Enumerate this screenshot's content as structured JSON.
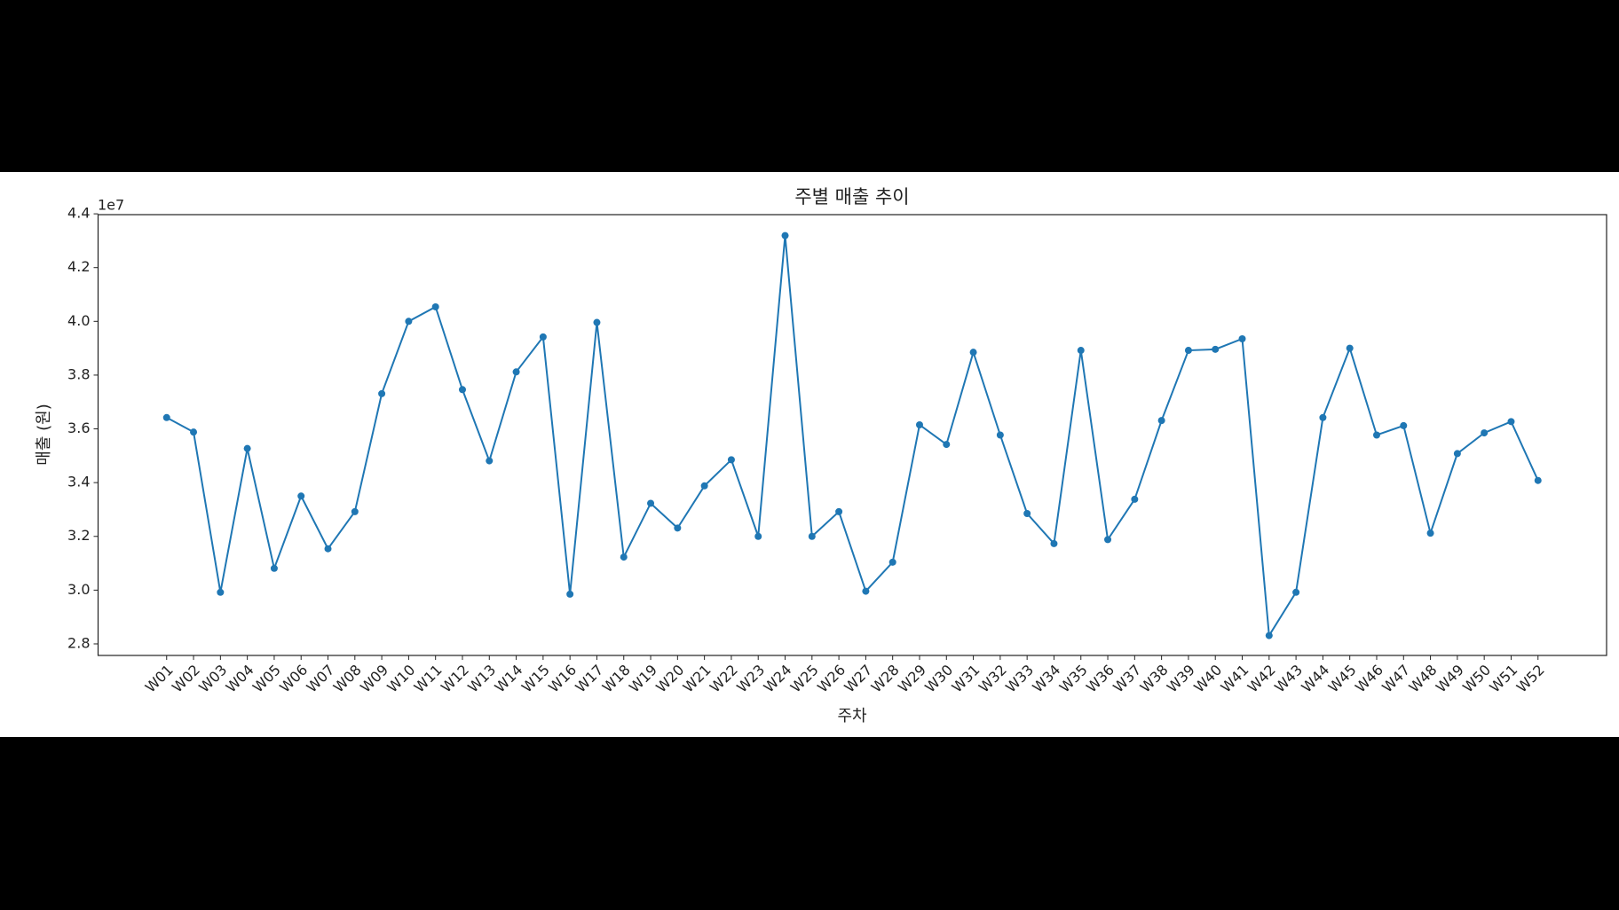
{
  "chart_data": {
    "type": "line",
    "title": "주별 매출 추이",
    "x_label": "주차",
    "y_label": "매출 (원)",
    "y_offset_label": "1e7",
    "categories": [
      "W01",
      "W02",
      "W03",
      "W04",
      "W05",
      "W06",
      "W07",
      "W08",
      "W09",
      "W10",
      "W11",
      "W12",
      "W13",
      "W14",
      "W15",
      "W16",
      "W17",
      "W18",
      "W19",
      "W20",
      "W21",
      "W22",
      "W23",
      "W24",
      "W25",
      "W26",
      "W27",
      "W28",
      "W29",
      "W30",
      "W31",
      "W32",
      "W33",
      "W34",
      "W35",
      "W36",
      "W37",
      "W38",
      "W39",
      "W40",
      "W41",
      "W42",
      "W43",
      "W44",
      "W45",
      "W46",
      "W47",
      "W48",
      "W49",
      "W50",
      "W51",
      "W52"
    ],
    "values": [
      3.642,
      3.588,
      2.992,
      3.527,
      3.081,
      3.35,
      3.154,
      3.292,
      3.731,
      4.0,
      4.054,
      3.746,
      3.481,
      3.812,
      3.942,
      2.985,
      3.996,
      3.123,
      3.323,
      3.231,
      3.388,
      3.485,
      3.2,
      4.319,
      3.2,
      3.292,
      2.996,
      3.104,
      3.615,
      3.542,
      3.885,
      3.577,
      3.285,
      3.173,
      3.892,
      3.188,
      3.338,
      3.631,
      3.892,
      3.896,
      3.935,
      2.831,
      2.992,
      3.642,
      3.9,
      3.577,
      3.612,
      3.212,
      3.508,
      3.585,
      3.627,
      3.408
    ],
    "color": "#1f77b4",
    "ylim": [
      2.757,
      4.397
    ],
    "yticks": [
      2.8,
      {
        "value": 3,
        "label": "3.0"
      },
      3.2,
      3.4,
      3.6,
      3.8,
      {
        "value": 4,
        "label": "4.0"
      },
      4.2,
      4.4
    ]
  }
}
